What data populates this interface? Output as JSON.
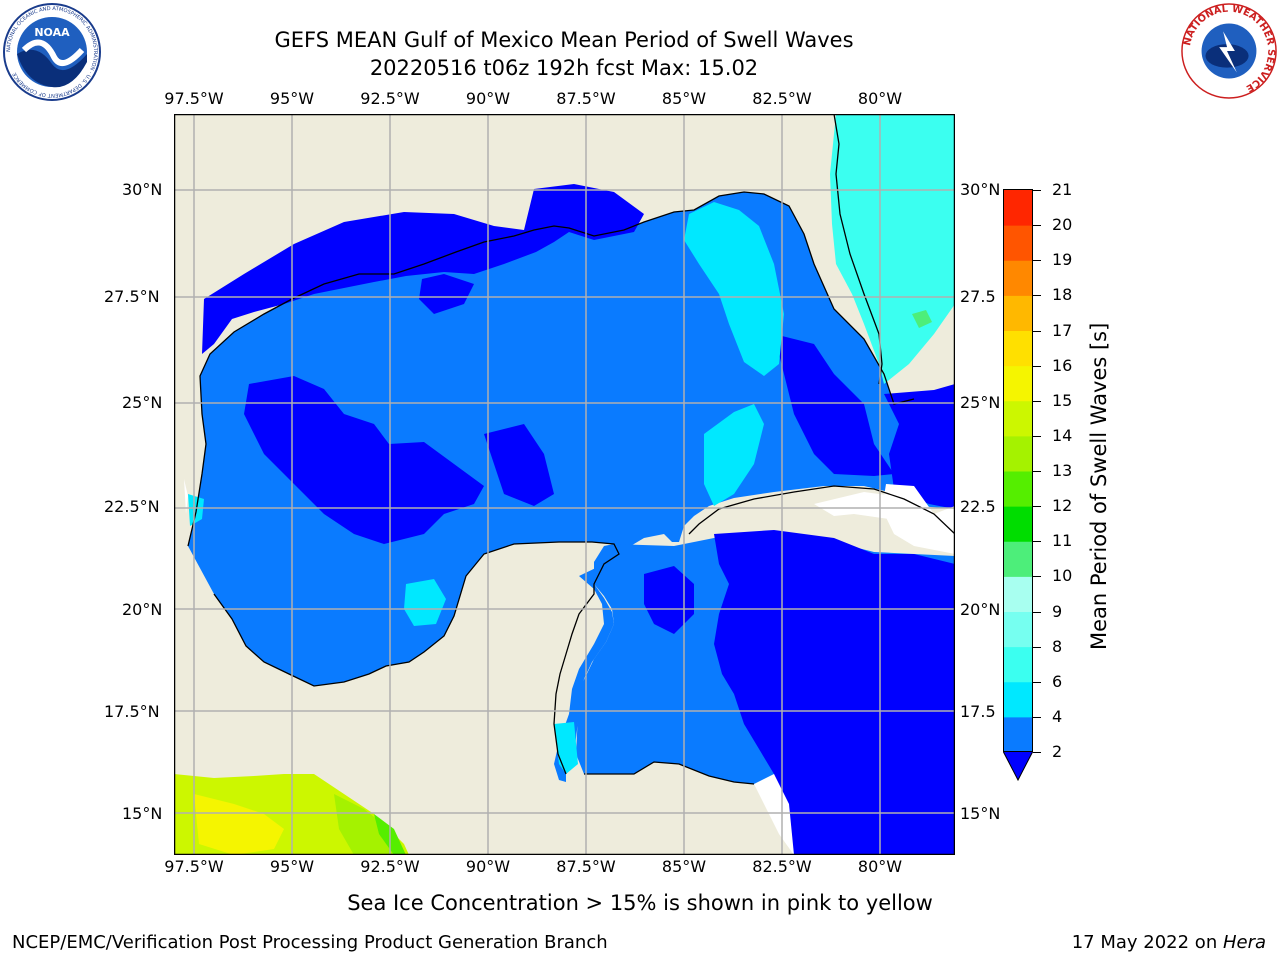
{
  "title": {
    "line1": "GEFS MEAN Gulf of Mexico Mean Period of Swell Waves",
    "line2": "20220516 t06z 192h fcst   Max: 15.02"
  },
  "map": {
    "lon_ticks": [
      "97.5°W",
      "95°W",
      "92.5°W",
      "90°W",
      "87.5°W",
      "85°W",
      "82.5°W",
      "80°W"
    ],
    "lat_ticks_left": [
      "30°N",
      "27.5°N",
      "25°N",
      "22.5°N",
      "20°N",
      "17.5°N",
      "15°N"
    ],
    "lat_ticks_right": [
      "30°N",
      "27.5",
      "25°N",
      "22.5",
      "20°N",
      "17.5",
      "15°N"
    ],
    "land_color": "#eeecdc",
    "grid_color": "#b0b0b0"
  },
  "colorbar": {
    "label": "Mean Period of Swell Waves [s]",
    "ticks": [
      "2",
      "4",
      "6",
      "8",
      "9",
      "10",
      "11",
      "12",
      "13",
      "14",
      "15",
      "16",
      "17",
      "18",
      "19",
      "20",
      "21"
    ],
    "colors": [
      "#0a7bff",
      "#00e8ff",
      "#3bfff0",
      "#76fff0",
      "#a8fff0",
      "#4dee7a",
      "#00dd00",
      "#55ee00",
      "#a5f200",
      "#ccf700",
      "#f5f500",
      "#ffe000",
      "#ffb800",
      "#ff8800",
      "#ff5500",
      "#ff2600",
      "#ff0000"
    ],
    "extend_color": "#0000ff"
  },
  "ice_note": "Sea Ice Concentration > 15% is shown in pink to yellow",
  "footer": {
    "left": "NCEP/EMC/Verification Post Processing Product Generation Branch",
    "right_prefix": "17 May 2022 on ",
    "right_italic": "Hera"
  },
  "logos": {
    "noaa_text": "NOAA",
    "noaa_ring": "NATIONAL OCEANIC AND ATMOSPHERIC ADMINISTRATION · U.S. DEPARTMENT OF COMMERCE",
    "nws_ring": "NATIONAL WEATHER SERVICE"
  }
}
